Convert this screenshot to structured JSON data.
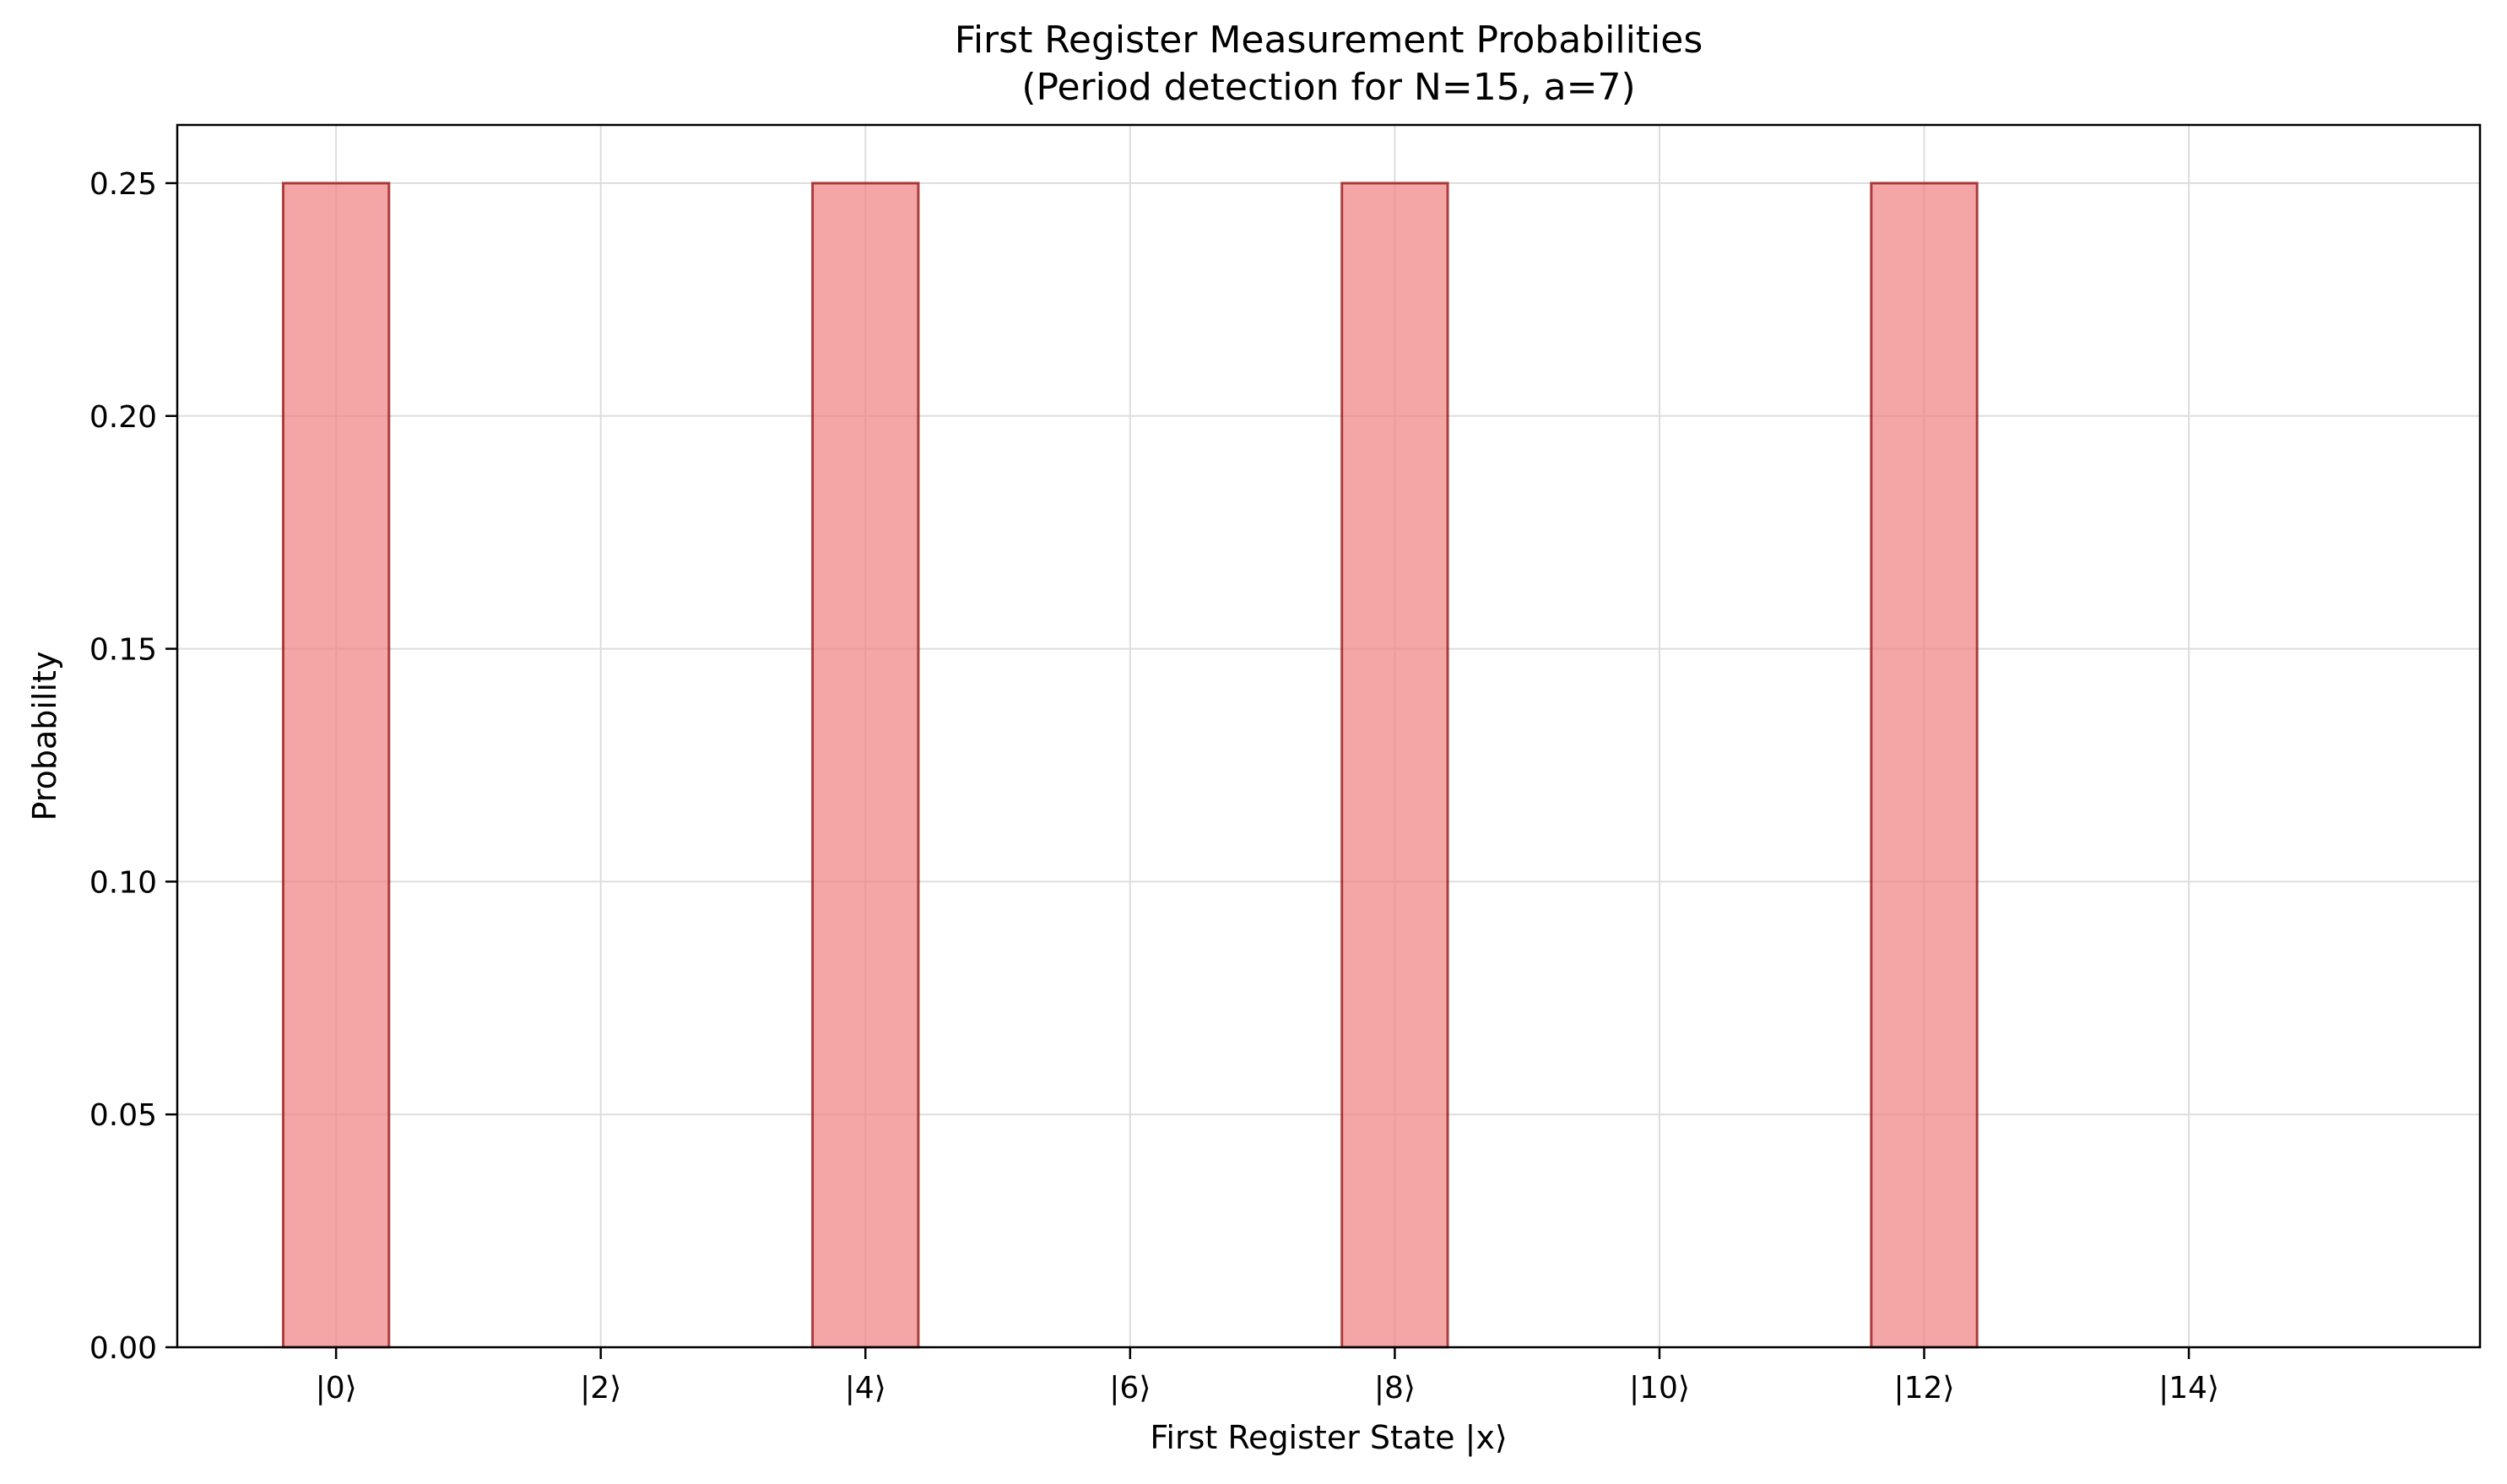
{
  "chart_data": {
    "type": "bar",
    "title": "First Register Measurement Probabilities",
    "subtitle": "(Period detection for N=15, a=7)",
    "xlabel": "First Register State |x⟩",
    "ylabel": "Probability",
    "x": [
      0,
      1,
      2,
      3,
      4,
      5,
      6,
      7,
      8,
      9,
      10,
      11,
      12,
      13,
      14,
      15
    ],
    "values": [
      0.25,
      0,
      0,
      0,
      0.25,
      0,
      0,
      0,
      0.25,
      0,
      0,
      0,
      0.25,
      0,
      0,
      0
    ],
    "xticks": [
      {
        "value": 0,
        "label": "|0⟩"
      },
      {
        "value": 2,
        "label": "|2⟩"
      },
      {
        "value": 4,
        "label": "|4⟩"
      },
      {
        "value": 6,
        "label": "|6⟩"
      },
      {
        "value": 8,
        "label": "|8⟩"
      },
      {
        "value": 10,
        "label": "|10⟩"
      },
      {
        "value": 12,
        "label": "|12⟩"
      },
      {
        "value": 14,
        "label": "|14⟩"
      }
    ],
    "yticks": [
      {
        "value": 0,
        "label": "0.00"
      },
      {
        "value": 0.05,
        "label": "0.05"
      },
      {
        "value": 0.1,
        "label": "0.10"
      },
      {
        "value": 0.15,
        "label": "0.15"
      },
      {
        "value": 0.2,
        "label": "0.20"
      },
      {
        "value": 0.25,
        "label": "0.25"
      }
    ],
    "xlim": [
      -1.2,
      16.2
    ],
    "ylim": [
      0,
      0.2625
    ],
    "grid": true,
    "bar_color": "#f08080",
    "edge_color": "#8b0000"
  }
}
